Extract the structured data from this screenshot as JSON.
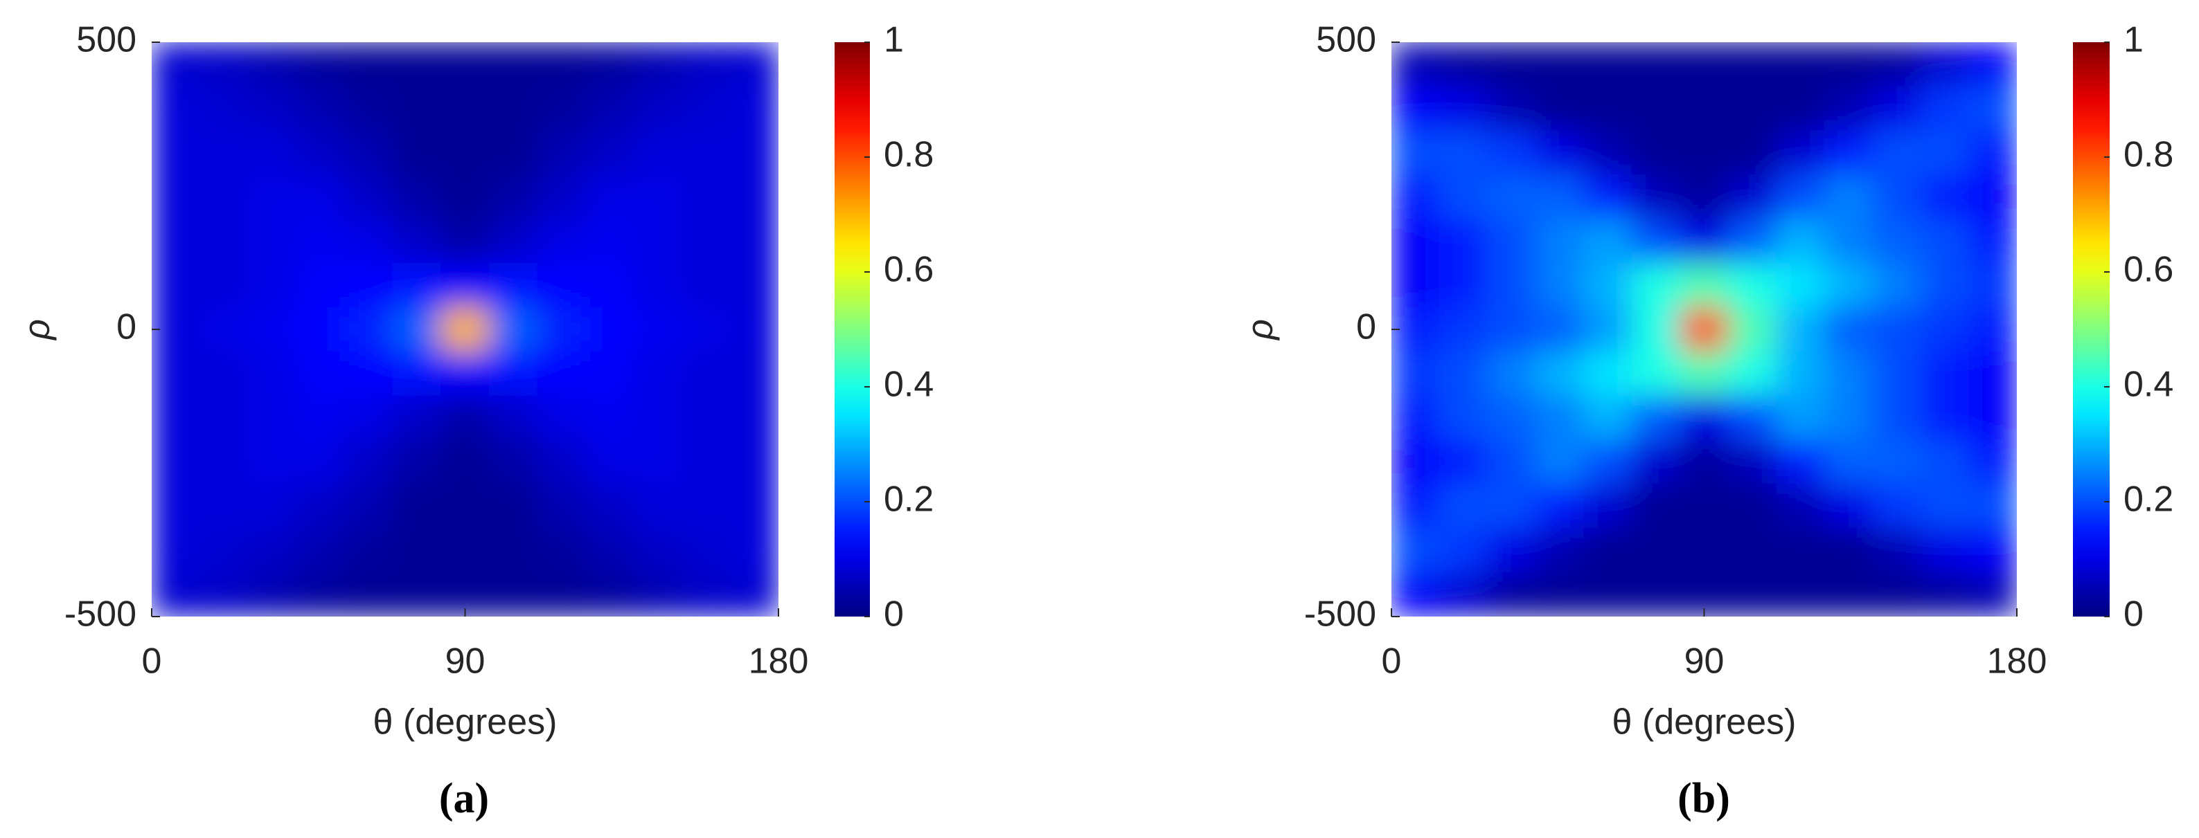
{
  "chart_data": [
    {
      "type": "heatmap",
      "colormap": "jet",
      "xlabel": "θ (degrees)",
      "ylabel": "ρ",
      "caption": "(a)",
      "xlim": [
        0,
        180
      ],
      "ylim": [
        -500,
        500
      ],
      "xticks": [
        0,
        90,
        180
      ],
      "yticks": [
        -500,
        0,
        500
      ],
      "clim": [
        0,
        1
      ],
      "cticks": [
        0,
        0.2,
        0.4,
        0.6,
        0.8,
        1
      ],
      "z": [
        [
          0.08,
          0.07,
          0.05,
          0.03,
          0.02,
          0.02,
          0.02,
          0.02,
          0.02,
          0.03,
          0.05,
          0.07,
          0.08
        ],
        [
          0.09,
          0.08,
          0.07,
          0.05,
          0.03,
          0.02,
          0.02,
          0.02,
          0.03,
          0.05,
          0.07,
          0.08,
          0.09
        ],
        [
          0.09,
          0.09,
          0.09,
          0.07,
          0.05,
          0.02,
          0.02,
          0.02,
          0.05,
          0.07,
          0.09,
          0.09,
          0.09
        ],
        [
          0.09,
          0.09,
          0.1,
          0.1,
          0.07,
          0.04,
          0.02,
          0.04,
          0.07,
          0.1,
          0.1,
          0.09,
          0.09
        ],
        [
          0.09,
          0.09,
          0.1,
          0.11,
          0.1,
          0.07,
          0.04,
          0.07,
          0.1,
          0.11,
          0.1,
          0.09,
          0.09
        ],
        [
          0.09,
          0.09,
          0.1,
          0.12,
          0.13,
          0.14,
          0.12,
          0.14,
          0.13,
          0.12,
          0.1,
          0.09,
          0.09
        ],
        [
          0.09,
          0.1,
          0.11,
          0.13,
          0.16,
          0.22,
          0.7,
          0.22,
          0.16,
          0.13,
          0.11,
          0.1,
          0.09
        ],
        [
          0.09,
          0.09,
          0.1,
          0.12,
          0.13,
          0.14,
          0.12,
          0.14,
          0.13,
          0.12,
          0.1,
          0.09,
          0.09
        ],
        [
          0.09,
          0.09,
          0.1,
          0.11,
          0.1,
          0.07,
          0.04,
          0.07,
          0.1,
          0.11,
          0.1,
          0.09,
          0.09
        ],
        [
          0.09,
          0.09,
          0.1,
          0.1,
          0.07,
          0.04,
          0.02,
          0.04,
          0.07,
          0.1,
          0.1,
          0.09,
          0.09
        ],
        [
          0.09,
          0.09,
          0.09,
          0.07,
          0.05,
          0.02,
          0.02,
          0.02,
          0.05,
          0.07,
          0.09,
          0.09,
          0.09
        ],
        [
          0.09,
          0.08,
          0.07,
          0.05,
          0.03,
          0.02,
          0.02,
          0.02,
          0.03,
          0.05,
          0.07,
          0.08,
          0.09
        ],
        [
          0.08,
          0.07,
          0.05,
          0.03,
          0.02,
          0.02,
          0.02,
          0.02,
          0.02,
          0.03,
          0.05,
          0.07,
          0.08
        ]
      ]
    },
    {
      "type": "heatmap",
      "colormap": "jet",
      "xlabel": "θ (degrees)",
      "ylabel": "ρ",
      "caption": "(b)",
      "xlim": [
        0,
        180
      ],
      "ylim": [
        -500,
        500
      ],
      "xticks": [
        0,
        90,
        180
      ],
      "yticks": [
        -500,
        0,
        500
      ],
      "clim": [
        0,
        1
      ],
      "cticks": [
        0,
        0.2,
        0.4,
        0.6,
        0.8,
        1
      ],
      "z": [
        [
          0.05,
          0.03,
          0.02,
          0.02,
          0.02,
          0.02,
          0.02,
          0.02,
          0.02,
          0.02,
          0.03,
          0.08,
          0.12
        ],
        [
          0.12,
          0.1,
          0.05,
          0.02,
          0.02,
          0.02,
          0.02,
          0.02,
          0.02,
          0.05,
          0.1,
          0.18,
          0.2
        ],
        [
          0.2,
          0.2,
          0.18,
          0.1,
          0.05,
          0.02,
          0.02,
          0.02,
          0.08,
          0.15,
          0.2,
          0.2,
          0.15
        ],
        [
          0.15,
          0.2,
          0.22,
          0.22,
          0.15,
          0.06,
          0.03,
          0.08,
          0.2,
          0.25,
          0.2,
          0.15,
          0.12
        ],
        [
          0.12,
          0.15,
          0.2,
          0.25,
          0.28,
          0.2,
          0.1,
          0.22,
          0.3,
          0.25,
          0.22,
          0.2,
          0.15
        ],
        [
          0.12,
          0.15,
          0.2,
          0.25,
          0.3,
          0.4,
          0.45,
          0.4,
          0.35,
          0.3,
          0.25,
          0.2,
          0.18
        ],
        [
          0.15,
          0.18,
          0.2,
          0.22,
          0.28,
          0.4,
          0.8,
          0.45,
          0.3,
          0.22,
          0.2,
          0.18,
          0.15
        ],
        [
          0.18,
          0.2,
          0.25,
          0.3,
          0.35,
          0.4,
          0.45,
          0.4,
          0.3,
          0.25,
          0.2,
          0.15,
          0.12
        ],
        [
          0.15,
          0.2,
          0.22,
          0.25,
          0.3,
          0.22,
          0.1,
          0.2,
          0.28,
          0.25,
          0.2,
          0.15,
          0.12
        ],
        [
          0.12,
          0.15,
          0.2,
          0.25,
          0.2,
          0.08,
          0.03,
          0.06,
          0.15,
          0.22,
          0.22,
          0.2,
          0.15
        ],
        [
          0.15,
          0.2,
          0.2,
          0.15,
          0.08,
          0.02,
          0.02,
          0.02,
          0.05,
          0.1,
          0.18,
          0.2,
          0.2
        ],
        [
          0.2,
          0.18,
          0.1,
          0.05,
          0.02,
          0.02,
          0.02,
          0.02,
          0.02,
          0.02,
          0.05,
          0.1,
          0.12
        ],
        [
          0.12,
          0.08,
          0.03,
          0.02,
          0.02,
          0.02,
          0.02,
          0.02,
          0.02,
          0.02,
          0.02,
          0.03,
          0.05
        ]
      ]
    }
  ]
}
